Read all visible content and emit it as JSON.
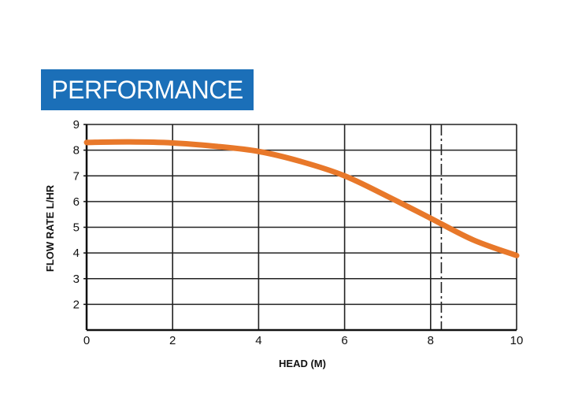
{
  "chart_data": {
    "type": "line",
    "title": "PERFORMANCE",
    "xlabel": "HEAD (M)",
    "ylabel": "FLOW RATE L/HR",
    "xlim": [
      0,
      10
    ],
    "ylim": [
      1,
      9
    ],
    "x_ticks": [
      "0",
      "2",
      "4",
      "6",
      "8",
      "10"
    ],
    "y_ticks": [
      "2",
      "3",
      "4",
      "5",
      "6",
      "7",
      "8",
      "9"
    ],
    "grid": true,
    "reference_line": {
      "x": 8.25,
      "style": "dash-dot"
    },
    "series": [
      {
        "color": "#e8782a",
        "x": [
          0,
          1,
          2,
          3,
          4,
          5,
          6,
          7,
          8,
          9,
          10
        ],
        "y": [
          8.3,
          8.32,
          8.28,
          8.15,
          7.95,
          7.55,
          7.0,
          6.2,
          5.35,
          4.5,
          3.9
        ]
      }
    ]
  }
}
